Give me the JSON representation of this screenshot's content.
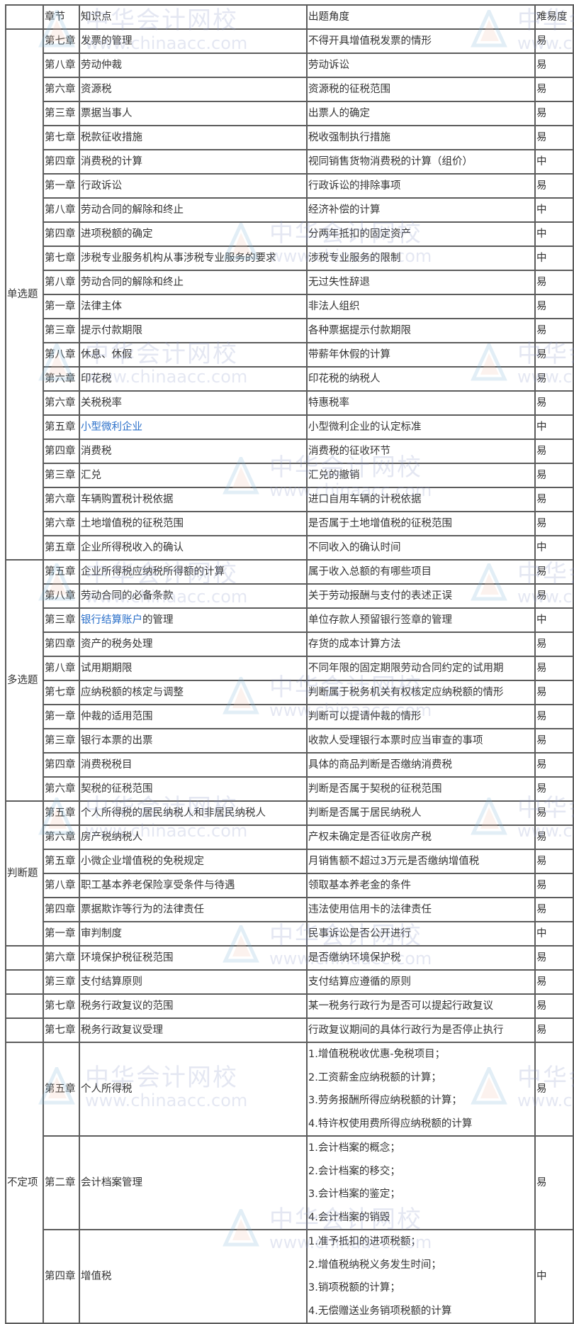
{
  "header": {
    "section": "",
    "chapter": "章节",
    "topic": "知识点",
    "angle": "出题角度",
    "difficulty": "难易度"
  },
  "watermark": {
    "title": "中华会计网校",
    "url": "www.chinaacc.com"
  },
  "colors": {
    "link": "#2a6fc9",
    "border": "#5c5c5c"
  },
  "sections": [
    {
      "label": "单选题",
      "rows": [
        {
          "chapter": "第七章",
          "topic": "发票的管理",
          "angle": "不得开具增值税发票的情形",
          "difficulty": "易"
        },
        {
          "chapter": "第八章",
          "topic": "劳动仲裁",
          "angle": "劳动诉讼",
          "difficulty": "易"
        },
        {
          "chapter": "第六章",
          "topic": "资源税",
          "angle": "资源税的征税范围",
          "difficulty": "易"
        },
        {
          "chapter": "第三章",
          "topic": "票据当事人",
          "angle": "出票人的确定",
          "difficulty": "易"
        },
        {
          "chapter": "第七章",
          "topic": "税款征收措施",
          "angle": "税收强制执行措施",
          "difficulty": "易"
        },
        {
          "chapter": "第四章",
          "topic": "消费税的计算",
          "angle": "视同销售货物消费税的计算（组价）",
          "difficulty": "中"
        },
        {
          "chapter": "第一章",
          "topic": "行政诉讼",
          "angle": "行政诉讼的排除事项",
          "difficulty": "易"
        },
        {
          "chapter": "第八章",
          "topic": "劳动合同的解除和终止",
          "angle": "经济补偿的计算",
          "difficulty": "中"
        },
        {
          "chapter": "第四章",
          "topic": "进项税额的确定",
          "angle": "分两年抵扣的固定资产",
          "difficulty": "中"
        },
        {
          "chapter": "第七章",
          "topic": "涉税专业服务机构从事涉税专业服务的要求",
          "angle": "涉税专业服务的限制",
          "difficulty": "中"
        },
        {
          "chapter": "第八章",
          "topic": "劳动合同的解除和终止",
          "angle": "无过失性辞退",
          "difficulty": "易"
        },
        {
          "chapter": "第一章",
          "topic": "法律主体",
          "angle": "非法人组织",
          "difficulty": "易"
        },
        {
          "chapter": "第三章",
          "topic": "提示付款期限",
          "angle": "各种票据提示付款期限",
          "difficulty": "易"
        },
        {
          "chapter": "第八章",
          "topic": "休息、休假",
          "angle": "带薪年休假的计算",
          "difficulty": "易"
        },
        {
          "chapter": "第六章",
          "topic": "印花税",
          "angle": "印花税的纳税人",
          "difficulty": "易"
        },
        {
          "chapter": "第六章",
          "topic": "关税税率",
          "angle": "特惠税率",
          "difficulty": "易"
        },
        {
          "chapter": "第五章",
          "topic_link": "小型微利企业",
          "topic": "",
          "angle": "小型微利企业的认定标准",
          "difficulty": "中"
        },
        {
          "chapter": "第四章",
          "topic": "消费税",
          "angle": "消费税的征收环节",
          "difficulty": "易"
        },
        {
          "chapter": "第三章",
          "topic": "汇兑",
          "angle": "汇兑的撤销",
          "difficulty": "易"
        },
        {
          "chapter": "第六章",
          "topic": "车辆购置税计税依据",
          "angle": "进口自用车辆的计税依据",
          "difficulty": "易"
        },
        {
          "chapter": "第六章",
          "topic": "土地增值税的征税范围",
          "angle": "是否属于土地增值税的征税范围",
          "difficulty": "易"
        },
        {
          "chapter": "第五章",
          "topic": "企业所得税收入的确认",
          "angle": "不同收入的确认时间",
          "difficulty": "中"
        }
      ]
    },
    {
      "label": "多选题",
      "rows": [
        {
          "chapter": "第五章",
          "topic": "企业所得税应纳税所得额的计算",
          "angle": "属于收入总额的有哪些项目",
          "difficulty": "易"
        },
        {
          "chapter": "第八章",
          "topic": "劳动合同的必备条款",
          "angle": "关于劳动报酬与支付的表述正误",
          "difficulty": "易"
        },
        {
          "chapter": "第三章",
          "topic_link": "银行结算账户",
          "topic": "的管理",
          "angle": "单位存款人预留银行签章的管理",
          "difficulty": "中"
        },
        {
          "chapter": "第四章",
          "topic": "资产的税务处理",
          "angle": "存货的成本计算方法",
          "difficulty": "易"
        },
        {
          "chapter": "第八章",
          "topic": "试用期期限",
          "angle": "不同年限的固定期限劳动合同约定的试用期",
          "difficulty": "易"
        },
        {
          "chapter": "第七章",
          "topic": "应纳税额的核定与调整",
          "angle": "判断属于税务机关有权核定应纳税额的情形",
          "difficulty": "易"
        },
        {
          "chapter": "第一章",
          "topic": "仲裁的适用范围",
          "angle": "判断可以提请仲裁的情形",
          "difficulty": "易"
        },
        {
          "chapter": "第三章",
          "topic": "银行本票的出票",
          "angle": "收款人受理银行本票时应当审查的事项",
          "difficulty": "易"
        },
        {
          "chapter": "第四章",
          "topic": "消费税税目",
          "angle": "具体的商品判断是否缴纳消费税",
          "difficulty": "易"
        },
        {
          "chapter": "第六章",
          "topic": "契税的征税范围",
          "angle": "判断是否属于契税的征税范围",
          "difficulty": "易"
        }
      ]
    },
    {
      "label": "判断题",
      "rows": [
        {
          "chapter": "第五章",
          "topic": "个人所得税的居民纳税人和非居民纳税人",
          "angle": "判断是否属于居民纳税人",
          "difficulty": "易"
        },
        {
          "chapter": "第六章",
          "topic": "房产税纳税人",
          "angle": "产权未确定是否征收房产税",
          "difficulty": "易"
        },
        {
          "chapter": "第五章",
          "topic": "小微企业增值税的免税规定",
          "angle": "月销售额不超过3万元是否缴纳增值税",
          "difficulty": "易"
        },
        {
          "chapter": "第八章",
          "topic": "职工基本养老保险享受条件与待遇",
          "angle": "领取基本养老金的条件",
          "difficulty": "易"
        },
        {
          "chapter": "第四章",
          "topic": "票据欺诈等行为的法律责任",
          "angle": "违法使用信用卡的法律责任",
          "difficulty": "易"
        },
        {
          "chapter": "第一章",
          "topic": "审判制度",
          "angle": "民事诉讼是否公开进行",
          "difficulty": "中"
        }
      ]
    },
    {
      "label": "",
      "split": true,
      "rows": [
        {
          "chapter": "第六章",
          "topic": "环境保护税征税范围",
          "angle": "是否缴纳环境保护税",
          "difficulty": "易"
        },
        {
          "chapter": "第三章",
          "topic": "支付结算原则",
          "angle": "支付结算应遵循的原则",
          "difficulty": "易"
        },
        {
          "chapter": "第七章",
          "topic": "税务行政复议的范围",
          "angle": "某一税务行政行为是否可以提起行政复议",
          "difficulty": "易"
        },
        {
          "chapter": "第七章",
          "topic": "税务行政复议受理",
          "angle": "行政复议期间的具体行政行为是否停止执行",
          "difficulty": "易"
        }
      ]
    },
    {
      "label": "不定项",
      "big": true,
      "rows": [
        {
          "chapter": "第五章",
          "topic": "个人所得税",
          "angles": [
            "1.增值税税收优惠-免税项目；",
            "2.工资薪金应纳税额的计算；",
            "3.劳务报酬所得应纳税额的计算；",
            "4.特许权使用费所得应纳税额的计算"
          ],
          "difficulty": "易"
        },
        {
          "chapter": "第二章",
          "topic": "会计档案管理",
          "angles": [
            "1.会计档案的概念；",
            "2.会计档案的移交；",
            "3.会计档案的鉴定；",
            "4.会计档案的销毁"
          ],
          "difficulty": "易"
        },
        {
          "chapter": "第四章",
          "topic": "增值税",
          "angles": [
            "1.准予抵扣的进项税额；",
            "2.增值税纳税义务发生时间；",
            "3.销项税额的计算；",
            "4.无偿赠送业务销项税额的计算"
          ],
          "difficulty": "中"
        }
      ]
    }
  ]
}
